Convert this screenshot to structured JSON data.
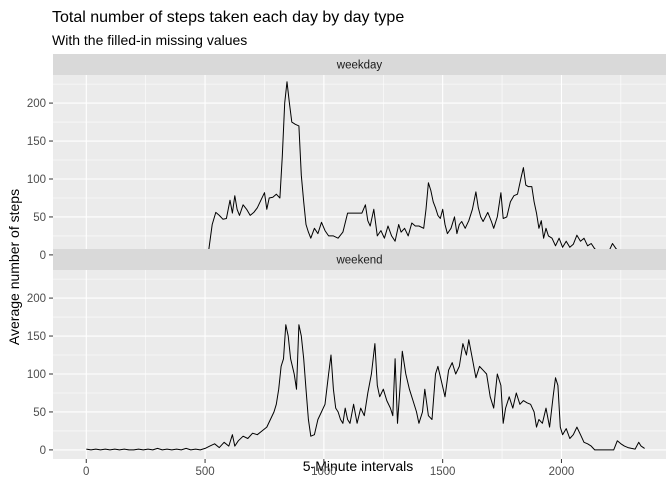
{
  "chart_data": {
    "type": "line",
    "title": "Total number of steps taken each day by day type",
    "subtitle": "With the filled-in missing values",
    "xlabel": "5-Minute intervals",
    "ylabel": "Average number of steps",
    "xlim": [
      -140,
      2440
    ],
    "ylim": [
      -12,
      237
    ],
    "x_ticks": [
      0,
      500,
      1000,
      1500,
      2000
    ],
    "y_ticks": [
      0,
      50,
      100,
      150,
      200
    ],
    "grid": true,
    "facets": [
      {
        "label": "weekday",
        "points": [
          [
            0,
            2
          ],
          [
            20,
            0
          ],
          [
            40,
            1
          ],
          [
            60,
            0
          ],
          [
            80,
            1
          ],
          [
            100,
            0
          ],
          [
            120,
            1
          ],
          [
            140,
            0
          ],
          [
            160,
            1
          ],
          [
            180,
            0
          ],
          [
            200,
            1
          ],
          [
            220,
            0
          ],
          [
            240,
            1
          ],
          [
            260,
            0
          ],
          [
            280,
            1
          ],
          [
            300,
            0
          ],
          [
            320,
            0
          ],
          [
            340,
            1
          ],
          [
            360,
            0
          ],
          [
            380,
            1
          ],
          [
            400,
            0
          ],
          [
            420,
            1
          ],
          [
            440,
            0
          ],
          [
            460,
            1
          ],
          [
            480,
            0
          ],
          [
            500,
            1
          ],
          [
            515,
            5
          ],
          [
            530,
            40
          ],
          [
            545,
            56
          ],
          [
            560,
            52
          ],
          [
            575,
            47
          ],
          [
            590,
            48
          ],
          [
            605,
            72
          ],
          [
            615,
            55
          ],
          [
            625,
            78
          ],
          [
            635,
            60
          ],
          [
            645,
            52
          ],
          [
            660,
            66
          ],
          [
            675,
            60
          ],
          [
            690,
            52
          ],
          [
            705,
            56
          ],
          [
            720,
            62
          ],
          [
            735,
            72
          ],
          [
            750,
            82
          ],
          [
            760,
            60
          ],
          [
            770,
            75
          ],
          [
            785,
            76
          ],
          [
            800,
            80
          ],
          [
            815,
            75
          ],
          [
            825,
            130
          ],
          [
            835,
            200
          ],
          [
            845,
            228
          ],
          [
            855,
            200
          ],
          [
            865,
            175
          ],
          [
            880,
            172
          ],
          [
            895,
            170
          ],
          [
            905,
            105
          ],
          [
            915,
            70
          ],
          [
            925,
            40
          ],
          [
            935,
            30
          ],
          [
            945,
            22
          ],
          [
            960,
            35
          ],
          [
            975,
            28
          ],
          [
            990,
            43
          ],
          [
            1005,
            32
          ],
          [
            1020,
            25
          ],
          [
            1040,
            25
          ],
          [
            1060,
            22
          ],
          [
            1080,
            30
          ],
          [
            1100,
            55
          ],
          [
            1120,
            55
          ],
          [
            1140,
            55
          ],
          [
            1160,
            55
          ],
          [
            1175,
            66
          ],
          [
            1185,
            45
          ],
          [
            1195,
            38
          ],
          [
            1210,
            60
          ],
          [
            1225,
            25
          ],
          [
            1240,
            32
          ],
          [
            1255,
            22
          ],
          [
            1270,
            38
          ],
          [
            1285,
            25
          ],
          [
            1300,
            18
          ],
          [
            1315,
            40
          ],
          [
            1325,
            30
          ],
          [
            1340,
            35
          ],
          [
            1355,
            25
          ],
          [
            1370,
            42
          ],
          [
            1385,
            38
          ],
          [
            1400,
            38
          ],
          [
            1420,
            35
          ],
          [
            1430,
            60
          ],
          [
            1440,
            95
          ],
          [
            1450,
            85
          ],
          [
            1460,
            70
          ],
          [
            1470,
            62
          ],
          [
            1480,
            52
          ],
          [
            1490,
            48
          ],
          [
            1500,
            60
          ],
          [
            1510,
            40
          ],
          [
            1520,
            28
          ],
          [
            1535,
            35
          ],
          [
            1550,
            50
          ],
          [
            1560,
            28
          ],
          [
            1570,
            40
          ],
          [
            1580,
            44
          ],
          [
            1595,
            35
          ],
          [
            1610,
            45
          ],
          [
            1625,
            60
          ],
          [
            1640,
            83
          ],
          [
            1650,
            62
          ],
          [
            1660,
            50
          ],
          [
            1670,
            44
          ],
          [
            1690,
            56
          ],
          [
            1705,
            44
          ],
          [
            1715,
            35
          ],
          [
            1730,
            50
          ],
          [
            1745,
            82
          ],
          [
            1755,
            48
          ],
          [
            1770,
            50
          ],
          [
            1785,
            70
          ],
          [
            1800,
            78
          ],
          [
            1815,
            80
          ],
          [
            1830,
            102
          ],
          [
            1840,
            115
          ],
          [
            1850,
            92
          ],
          [
            1860,
            90
          ],
          [
            1875,
            90
          ],
          [
            1885,
            70
          ],
          [
            1895,
            55
          ],
          [
            1905,
            35
          ],
          [
            1915,
            45
          ],
          [
            1925,
            22
          ],
          [
            1935,
            35
          ],
          [
            1945,
            25
          ],
          [
            1960,
            22
          ],
          [
            1975,
            12
          ],
          [
            1990,
            22
          ],
          [
            2005,
            10
          ],
          [
            2020,
            18
          ],
          [
            2035,
            10
          ],
          [
            2050,
            14
          ],
          [
            2065,
            26
          ],
          [
            2080,
            18
          ],
          [
            2095,
            22
          ],
          [
            2110,
            12
          ],
          [
            2125,
            15
          ],
          [
            2140,
            8
          ],
          [
            2155,
            5
          ],
          [
            2170,
            4
          ],
          [
            2185,
            2
          ],
          [
            2200,
            5
          ],
          [
            2215,
            15
          ],
          [
            2230,
            8
          ],
          [
            2245,
            4
          ],
          [
            2260,
            3
          ],
          [
            2275,
            5
          ],
          [
            2290,
            3
          ],
          [
            2305,
            2
          ],
          [
            2320,
            4
          ],
          [
            2335,
            1
          ],
          [
            2355,
            1
          ]
        ]
      },
      {
        "label": "weekend",
        "points": [
          [
            0,
            1
          ],
          [
            20,
            0
          ],
          [
            40,
            1
          ],
          [
            60,
            0
          ],
          [
            80,
            1
          ],
          [
            100,
            0
          ],
          [
            120,
            1
          ],
          [
            140,
            0
          ],
          [
            160,
            1
          ],
          [
            180,
            0
          ],
          [
            200,
            0
          ],
          [
            220,
            1
          ],
          [
            240,
            0
          ],
          [
            260,
            1
          ],
          [
            280,
            0
          ],
          [
            300,
            2
          ],
          [
            320,
            0
          ],
          [
            340,
            1
          ],
          [
            360,
            0
          ],
          [
            380,
            1
          ],
          [
            400,
            0
          ],
          [
            420,
            2
          ],
          [
            440,
            0
          ],
          [
            460,
            1
          ],
          [
            480,
            0
          ],
          [
            500,
            2
          ],
          [
            520,
            5
          ],
          [
            540,
            8
          ],
          [
            560,
            3
          ],
          [
            580,
            10
          ],
          [
            600,
            5
          ],
          [
            615,
            20
          ],
          [
            625,
            5
          ],
          [
            640,
            12
          ],
          [
            660,
            18
          ],
          [
            680,
            15
          ],
          [
            700,
            22
          ],
          [
            720,
            20
          ],
          [
            740,
            25
          ],
          [
            760,
            30
          ],
          [
            775,
            40
          ],
          [
            790,
            50
          ],
          [
            800,
            60
          ],
          [
            810,
            80
          ],
          [
            820,
            110
          ],
          [
            830,
            120
          ],
          [
            840,
            165
          ],
          [
            850,
            150
          ],
          [
            860,
            120
          ],
          [
            875,
            100
          ],
          [
            885,
            80
          ],
          [
            895,
            165
          ],
          [
            905,
            150
          ],
          [
            915,
            120
          ],
          [
            925,
            80
          ],
          [
            935,
            40
          ],
          [
            945,
            18
          ],
          [
            960,
            20
          ],
          [
            975,
            40
          ],
          [
            990,
            50
          ],
          [
            1005,
            60
          ],
          [
            1020,
            100
          ],
          [
            1030,
            125
          ],
          [
            1040,
            80
          ],
          [
            1050,
            55
          ],
          [
            1060,
            50
          ],
          [
            1070,
            40
          ],
          [
            1080,
            35
          ],
          [
            1090,
            55
          ],
          [
            1100,
            40
          ],
          [
            1110,
            35
          ],
          [
            1125,
            60
          ],
          [
            1140,
            35
          ],
          [
            1155,
            55
          ],
          [
            1170,
            45
          ],
          [
            1185,
            75
          ],
          [
            1200,
            100
          ],
          [
            1215,
            140
          ],
          [
            1225,
            85
          ],
          [
            1235,
            70
          ],
          [
            1250,
            80
          ],
          [
            1265,
            65
          ],
          [
            1280,
            55
          ],
          [
            1290,
            45
          ],
          [
            1300,
            120
          ],
          [
            1310,
            35
          ],
          [
            1320,
            80
          ],
          [
            1330,
            130
          ],
          [
            1345,
            100
          ],
          [
            1360,
            80
          ],
          [
            1375,
            65
          ],
          [
            1390,
            50
          ],
          [
            1400,
            35
          ],
          [
            1415,
            50
          ],
          [
            1425,
            80
          ],
          [
            1440,
            45
          ],
          [
            1455,
            40
          ],
          [
            1470,
            100
          ],
          [
            1480,
            110
          ],
          [
            1495,
            90
          ],
          [
            1510,
            70
          ],
          [
            1525,
            105
          ],
          [
            1540,
            115
          ],
          [
            1555,
            100
          ],
          [
            1570,
            110
          ],
          [
            1585,
            140
          ],
          [
            1600,
            125
          ],
          [
            1610,
            145
          ],
          [
            1625,
            120
          ],
          [
            1640,
            95
          ],
          [
            1655,
            110
          ],
          [
            1670,
            105
          ],
          [
            1685,
            100
          ],
          [
            1700,
            70
          ],
          [
            1715,
            55
          ],
          [
            1730,
            100
          ],
          [
            1745,
            85
          ],
          [
            1755,
            35
          ],
          [
            1765,
            55
          ],
          [
            1780,
            70
          ],
          [
            1795,
            55
          ],
          [
            1810,
            75
          ],
          [
            1825,
            60
          ],
          [
            1840,
            65
          ],
          [
            1855,
            62
          ],
          [
            1870,
            60
          ],
          [
            1885,
            50
          ],
          [
            1895,
            30
          ],
          [
            1905,
            40
          ],
          [
            1920,
            35
          ],
          [
            1935,
            55
          ],
          [
            1950,
            30
          ],
          [
            1965,
            70
          ],
          [
            1975,
            95
          ],
          [
            1985,
            85
          ],
          [
            1995,
            30
          ],
          [
            2005,
            20
          ],
          [
            2020,
            28
          ],
          [
            2035,
            15
          ],
          [
            2050,
            20
          ],
          [
            2065,
            30
          ],
          [
            2080,
            20
          ],
          [
            2095,
            10
          ],
          [
            2110,
            8
          ],
          [
            2125,
            5
          ],
          [
            2140,
            0
          ],
          [
            2160,
            0
          ],
          [
            2180,
            0
          ],
          [
            2200,
            0
          ],
          [
            2220,
            0
          ],
          [
            2235,
            12
          ],
          [
            2250,
            8
          ],
          [
            2265,
            5
          ],
          [
            2280,
            3
          ],
          [
            2295,
            2
          ],
          [
            2310,
            1
          ],
          [
            2325,
            10
          ],
          [
            2335,
            5
          ],
          [
            2350,
            2
          ]
        ]
      }
    ]
  }
}
